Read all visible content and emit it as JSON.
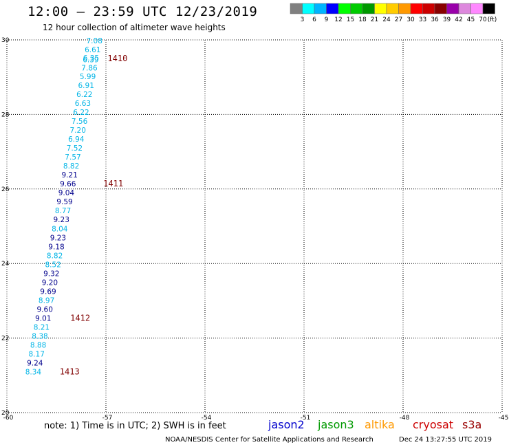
{
  "header": {
    "title": "12:00 – 23:59 UTC 12/23/2019",
    "subtitle": "12 hour collection of altimeter wave heights"
  },
  "legend": {
    "colors": [
      "#808080",
      "#00ffff",
      "#00b4ff",
      "#0000ff",
      "#00ff00",
      "#00cc00",
      "#009900",
      "#ffff00",
      "#ffcc00",
      "#ff9900",
      "#ff0000",
      "#cc0000",
      "#880000",
      "#9900aa",
      "#dd88dd",
      "#ff88ff",
      "#000000"
    ],
    "labels": [
      "3",
      "6",
      "9",
      "12",
      "15",
      "18",
      "21",
      "24",
      "27",
      "30",
      "33",
      "36",
      "39",
      "42",
      "45",
      "70",
      "(ft)"
    ]
  },
  "footer": {
    "note": "note:  1) Time is in UTC;  2) SWH is in feet",
    "credit": "NOAA/NESDIS Center for Satellite Applications and Research",
    "timestamp": "Dec 24 13:27:55 UTC 2019"
  },
  "satellites": [
    {
      "name": "jason2",
      "color": "#0000cc"
    },
    {
      "name": "jason3",
      "color": "#009900"
    },
    {
      "name": "altika",
      "color": "#ff9900"
    },
    {
      "name": "cryosat",
      "color": "#cc0000"
    },
    {
      "name": "s3a",
      "color": "#990000"
    }
  ],
  "chart_data": {
    "type": "scatter",
    "xlim": [
      -60,
      -45
    ],
    "ylim": [
      20,
      30
    ],
    "xticks": [
      "-60",
      "-57",
      "-54",
      "-51",
      "-48",
      "-45"
    ],
    "yticks": [
      "20",
      "22",
      "24",
      "26",
      "28",
      "30"
    ],
    "grid": true,
    "label_colors": {
      "cyan": "#00b4e6",
      "navy": "#00008c",
      "hour": "#800000"
    },
    "points": [
      {
        "lon": -57.35,
        "lat": 29.98,
        "swh": "7.08",
        "c": "cyan"
      },
      {
        "lon": -57.4,
        "lat": 29.74,
        "swh": "6.61",
        "c": "cyan"
      },
      {
        "lon": -57.45,
        "lat": 29.52,
        "swh": "6.35",
        "c": "cyan"
      },
      {
        "lon": -57.46,
        "lat": 29.47,
        "swh": "6.39",
        "c": "cyan"
      },
      {
        "lon": -57.5,
        "lat": 29.25,
        "swh": "7.86",
        "c": "cyan"
      },
      {
        "lon": -57.55,
        "lat": 29.02,
        "swh": "5.99",
        "c": "cyan"
      },
      {
        "lon": -57.6,
        "lat": 28.78,
        "swh": "6.91",
        "c": "cyan"
      },
      {
        "lon": -57.65,
        "lat": 28.54,
        "swh": "6.22",
        "c": "cyan"
      },
      {
        "lon": -57.7,
        "lat": 28.3,
        "swh": "6.63",
        "c": "cyan"
      },
      {
        "lon": -57.75,
        "lat": 28.06,
        "swh": "6.22",
        "c": "cyan"
      },
      {
        "lon": -57.8,
        "lat": 27.82,
        "swh": "7.56",
        "c": "cyan"
      },
      {
        "lon": -57.85,
        "lat": 27.58,
        "swh": "7.20",
        "c": "cyan"
      },
      {
        "lon": -57.9,
        "lat": 27.34,
        "swh": "6.94",
        "c": "cyan"
      },
      {
        "lon": -57.95,
        "lat": 27.1,
        "swh": "7.52",
        "c": "cyan"
      },
      {
        "lon": -58.0,
        "lat": 26.86,
        "swh": "7.57",
        "c": "cyan"
      },
      {
        "lon": -58.05,
        "lat": 26.62,
        "swh": "8.82",
        "c": "cyan"
      },
      {
        "lon": -58.1,
        "lat": 26.38,
        "swh": "9.21",
        "c": "navy"
      },
      {
        "lon": -58.15,
        "lat": 26.14,
        "swh": "9.66",
        "c": "navy"
      },
      {
        "lon": -58.2,
        "lat": 25.9,
        "swh": "9.04",
        "c": "navy"
      },
      {
        "lon": -58.25,
        "lat": 25.66,
        "swh": "9.59",
        "c": "navy"
      },
      {
        "lon": -58.3,
        "lat": 25.42,
        "swh": "8.77",
        "c": "cyan"
      },
      {
        "lon": -58.35,
        "lat": 25.18,
        "swh": "9.23",
        "c": "navy"
      },
      {
        "lon": -58.4,
        "lat": 24.94,
        "swh": "8.04",
        "c": "cyan"
      },
      {
        "lon": -58.45,
        "lat": 24.7,
        "swh": "9.23",
        "c": "navy"
      },
      {
        "lon": -58.5,
        "lat": 24.46,
        "swh": "9.18",
        "c": "navy"
      },
      {
        "lon": -58.55,
        "lat": 24.22,
        "swh": "8.82",
        "c": "cyan"
      },
      {
        "lon": -58.6,
        "lat": 23.98,
        "swh": "8.52",
        "c": "cyan"
      },
      {
        "lon": -58.65,
        "lat": 23.74,
        "swh": "9.32",
        "c": "navy"
      },
      {
        "lon": -58.7,
        "lat": 23.5,
        "swh": "9.20",
        "c": "navy"
      },
      {
        "lon": -58.75,
        "lat": 23.26,
        "swh": "9.69",
        "c": "navy"
      },
      {
        "lon": -58.8,
        "lat": 23.02,
        "swh": "8.97",
        "c": "cyan"
      },
      {
        "lon": -58.85,
        "lat": 22.78,
        "swh": "9.60",
        "c": "navy"
      },
      {
        "lon": -58.9,
        "lat": 22.54,
        "swh": "9.01",
        "c": "navy"
      },
      {
        "lon": -58.95,
        "lat": 22.3,
        "swh": "8.21",
        "c": "cyan"
      },
      {
        "lon": -59.0,
        "lat": 22.06,
        "swh": "8.38",
        "c": "cyan"
      },
      {
        "lon": -59.05,
        "lat": 21.82,
        "swh": "8.88",
        "c": "cyan"
      },
      {
        "lon": -59.1,
        "lat": 21.58,
        "swh": "8.17",
        "c": "cyan"
      },
      {
        "lon": -59.15,
        "lat": 21.34,
        "swh": "9.24",
        "c": "navy"
      },
      {
        "lon": -59.2,
        "lat": 21.1,
        "swh": "8.34",
        "c": "cyan"
      }
    ],
    "annotations": [
      {
        "lon": -56.95,
        "lat": 29.5,
        "text": "1410"
      },
      {
        "lon": -57.08,
        "lat": 26.14,
        "text": "1411"
      },
      {
        "lon": -58.08,
        "lat": 22.54,
        "text": "1412"
      },
      {
        "lon": -58.4,
        "lat": 21.1,
        "text": "1413"
      }
    ]
  }
}
